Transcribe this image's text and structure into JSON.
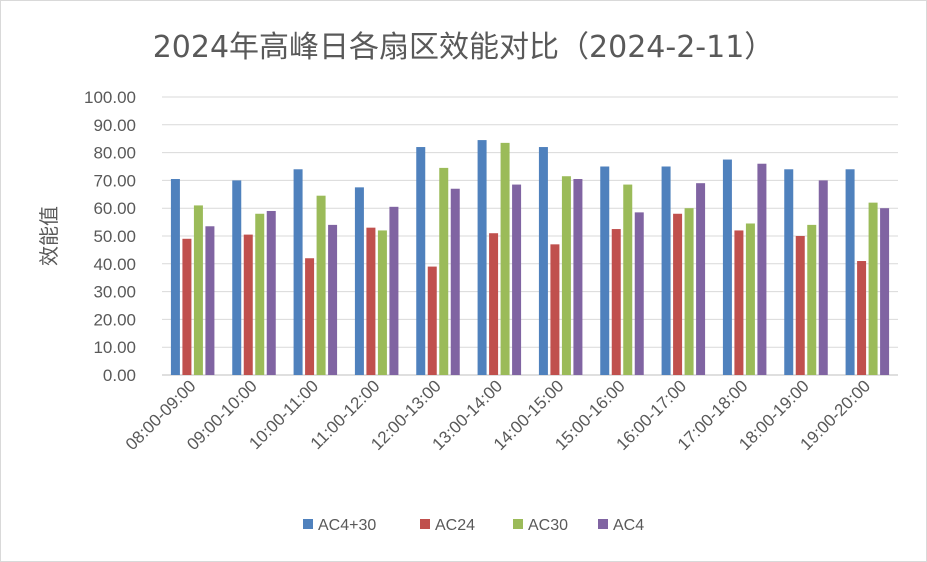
{
  "chart_data": {
    "type": "bar",
    "title": "2024年高峰日各扇区效能对比（2024-2-11）",
    "xlabel": "",
    "ylabel": "效能值",
    "ylim": [
      0,
      100
    ],
    "yticks": [
      "0.00",
      "10.00",
      "20.00",
      "30.00",
      "40.00",
      "50.00",
      "60.00",
      "70.00",
      "80.00",
      "90.00",
      "100.00"
    ],
    "grid": true,
    "legend_position": "bottom",
    "categories": [
      "08:00-09:00",
      "09:00-10:00",
      "10:00-11:00",
      "11:00-12:00",
      "12:00-13:00",
      "13:00-14:00",
      "14:00-15:00",
      "15:00-16:00",
      "16:00-17:00",
      "17:00-18:00",
      "18:00-19:00",
      "19:00-20:00"
    ],
    "series": [
      {
        "name": "AC4+30",
        "color": "#4f81bd",
        "values": [
          70.5,
          70.0,
          74.0,
          67.5,
          82.0,
          84.5,
          82.0,
          75.0,
          75.0,
          77.5,
          74.0,
          74.0
        ]
      },
      {
        "name": "AC24",
        "color": "#c0504d",
        "values": [
          49.0,
          50.5,
          42.0,
          53.0,
          39.0,
          51.0,
          47.0,
          52.5,
          58.0,
          52.0,
          50.0,
          41.0
        ]
      },
      {
        "name": "AC30",
        "color": "#9bbb59",
        "values": [
          61.0,
          58.0,
          64.5,
          52.0,
          74.5,
          83.5,
          71.5,
          68.5,
          60.0,
          54.5,
          54.0,
          62.0
        ]
      },
      {
        "name": "AC4",
        "color": "#8064a2",
        "values": [
          53.5,
          59.0,
          54.0,
          60.5,
          67.0,
          68.5,
          70.5,
          58.5,
          69.0,
          76.0,
          70.0,
          60.0
        ]
      }
    ]
  }
}
